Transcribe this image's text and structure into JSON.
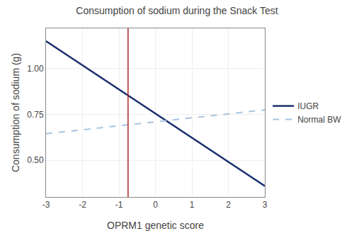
{
  "chart_data": {
    "type": "line",
    "title": "Consumption of sodium during the Snack Test",
    "xlabel": "OPRM1 genetic score",
    "ylabel": "Consumption of sodium (g)",
    "x": [
      -3,
      3
    ],
    "series": [
      {
        "name": "IUGR",
        "color": "#1a2f6e",
        "line_style": "solid",
        "values": [
          1.15,
          0.36
        ]
      },
      {
        "name": "Normal BW",
        "color": "#a8c4e0",
        "line_style": "dashed",
        "values": [
          0.645,
          0.775
        ]
      }
    ],
    "vlines": [
      {
        "x": -0.75,
        "color": "#b22222"
      }
    ],
    "xlim": [
      -3,
      3
    ],
    "ylim": [
      0.3,
      1.22
    ],
    "xticks": [
      -3,
      -2,
      -1,
      0,
      1,
      2,
      3
    ],
    "yticks": [
      {
        "value": 0.5,
        "label": "0.50"
      },
      {
        "value": 0.75,
        "label": "0.75"
      },
      {
        "value": 1.0,
        "label": "1.00"
      }
    ],
    "grid": true,
    "legend": "right"
  }
}
